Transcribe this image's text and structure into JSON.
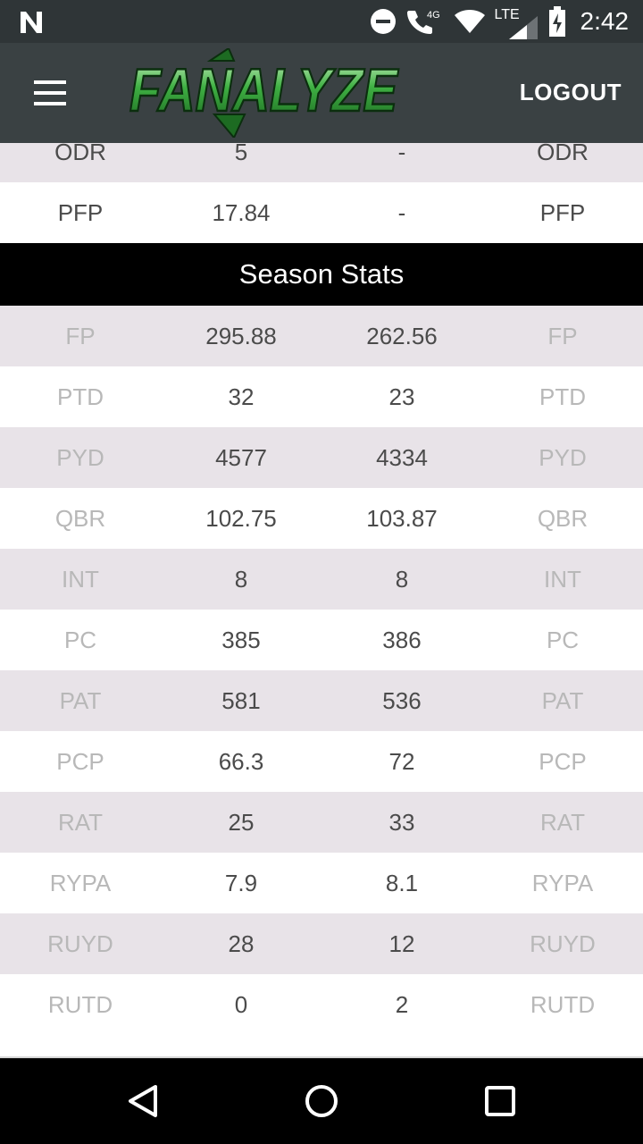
{
  "status_bar": {
    "time": "2:42",
    "network_label": "4G",
    "lte_label": "LTE",
    "icons": [
      "notification-n-icon",
      "do-not-disturb-icon",
      "wifi-calling-icon",
      "wifi-icon",
      "cell-signal-icon",
      "battery-charging-icon"
    ]
  },
  "app_bar": {
    "logo_text": "FANALYZE",
    "logout_label": "LOGOUT",
    "colors": {
      "bar": "#3a4143",
      "logo_green": "#2e9a35",
      "logo_outline": "#0b2e0e"
    }
  },
  "top_rows": [
    {
      "label_left": "ODR",
      "value_a": "5",
      "value_b": "-",
      "label_right": "ODR"
    },
    {
      "label_left": "PFP",
      "value_a": "17.84",
      "value_b": "-",
      "label_right": "PFP"
    }
  ],
  "season_stats": {
    "title": "Season Stats",
    "rows": [
      {
        "label_left": "FP",
        "value_a": "295.88",
        "value_b": "262.56",
        "label_right": "FP"
      },
      {
        "label_left": "PTD",
        "value_a": "32",
        "value_b": "23",
        "label_right": "PTD"
      },
      {
        "label_left": "PYD",
        "value_a": "4577",
        "value_b": "4334",
        "label_right": "PYD"
      },
      {
        "label_left": "QBR",
        "value_a": "102.75",
        "value_b": "103.87",
        "label_right": "QBR"
      },
      {
        "label_left": "INT",
        "value_a": "8",
        "value_b": "8",
        "label_right": "INT"
      },
      {
        "label_left": "PC",
        "value_a": "385",
        "value_b": "386",
        "label_right": "PC"
      },
      {
        "label_left": "PAT",
        "value_a": "581",
        "value_b": "536",
        "label_right": "PAT"
      },
      {
        "label_left": "PCP",
        "value_a": "66.3",
        "value_b": "72",
        "label_right": "PCP"
      },
      {
        "label_left": "RAT",
        "value_a": "25",
        "value_b": "33",
        "label_right": "RAT"
      },
      {
        "label_left": "RYPA",
        "value_a": "7.9",
        "value_b": "8.1",
        "label_right": "RYPA"
      },
      {
        "label_left": "RUYD",
        "value_a": "28",
        "value_b": "12",
        "label_right": "RUYD"
      },
      {
        "label_left": "RUTD",
        "value_a": "0",
        "value_b": "2",
        "label_right": "RUTD"
      }
    ]
  },
  "nav_bar": {
    "icons": [
      "back-icon",
      "home-icon",
      "recents-icon"
    ]
  }
}
